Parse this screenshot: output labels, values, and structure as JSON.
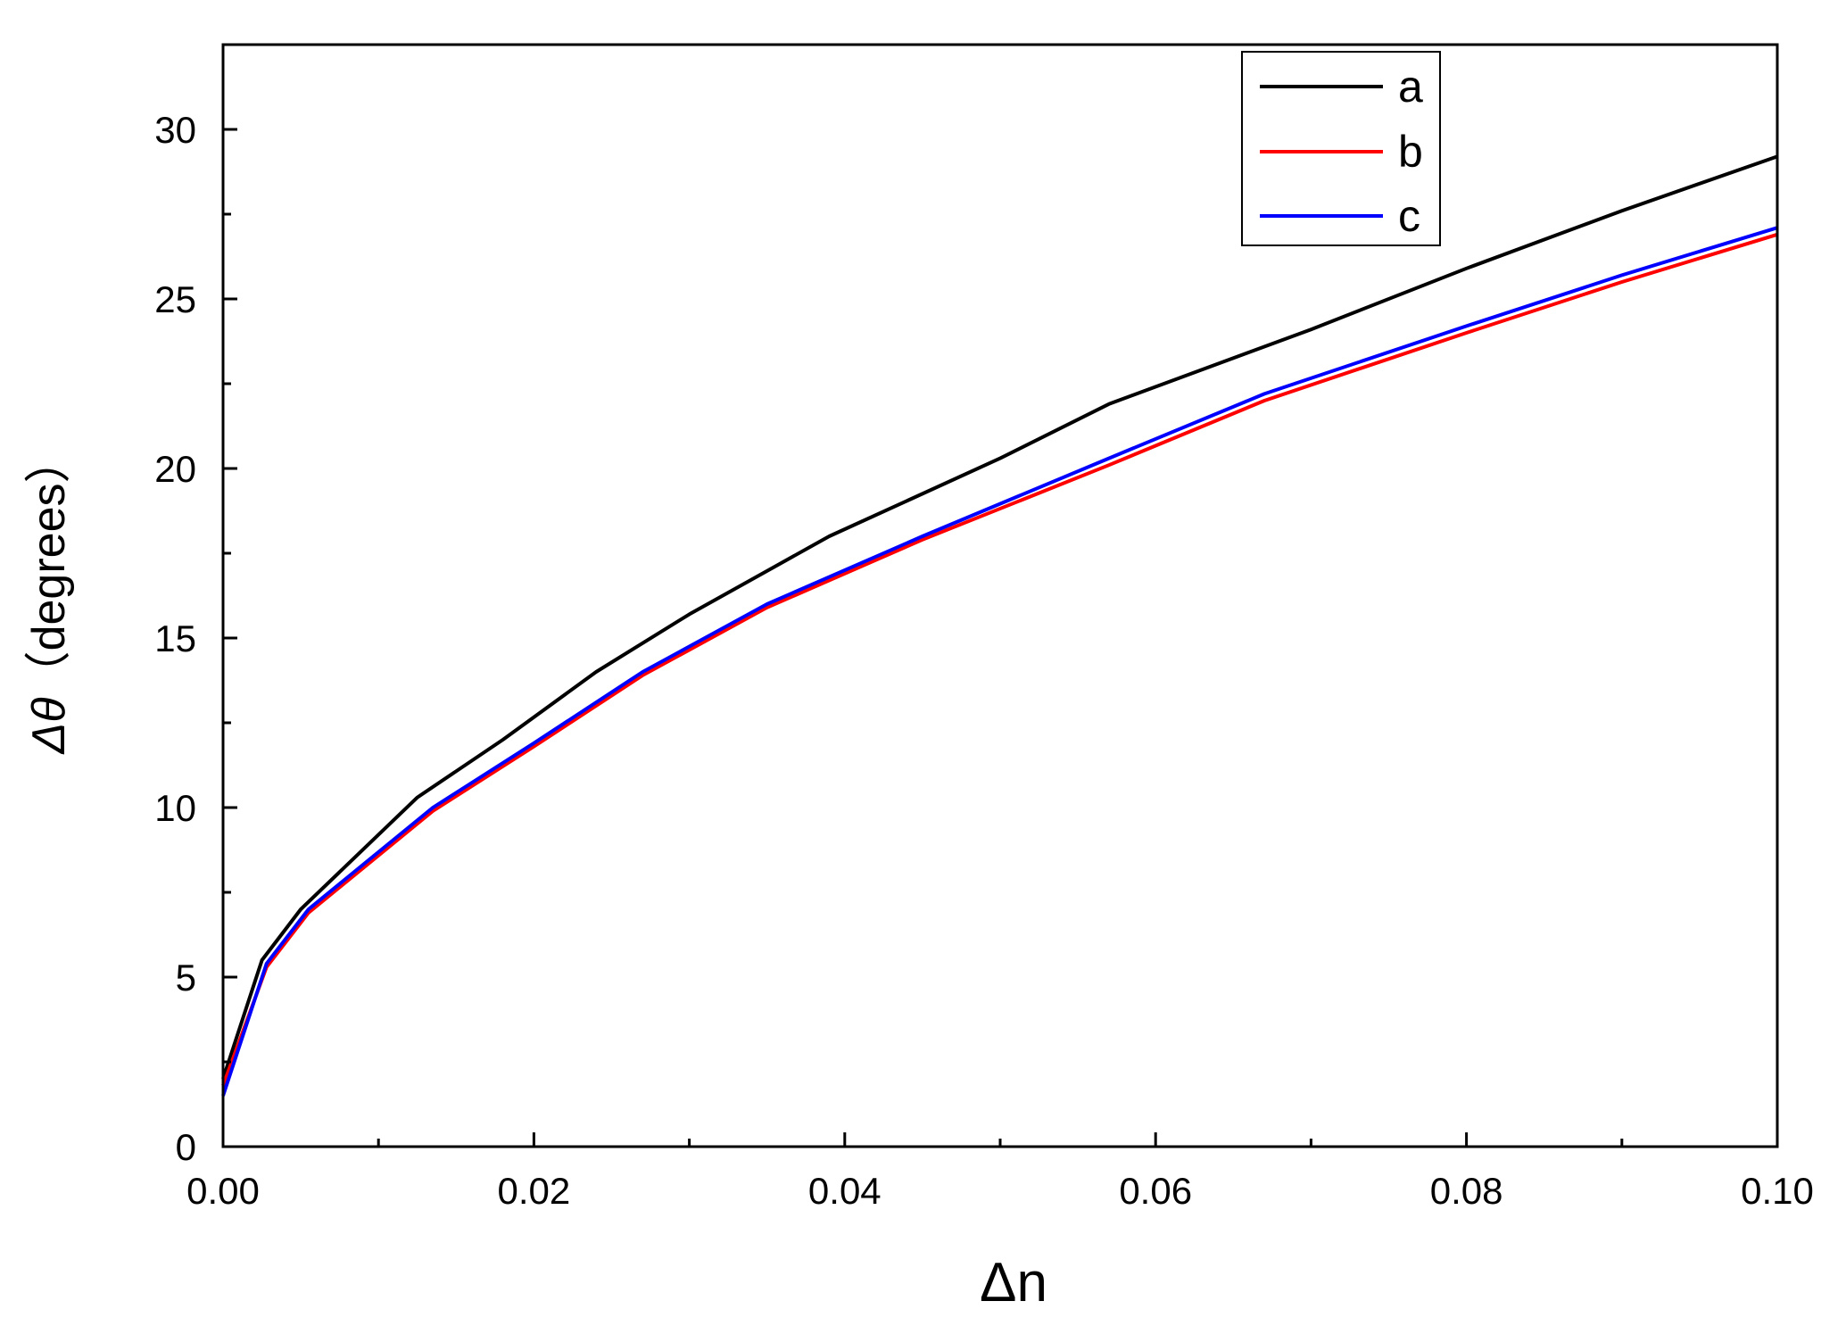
{
  "chart_data": {
    "type": "line",
    "xlabel": "Δn",
    "ylabel_symbol": "Δθ",
    "ylabel_unit": "（degrees）",
    "xlim": [
      0,
      0.1
    ],
    "ylim": [
      0,
      32.5
    ],
    "x_ticks": [
      0,
      0.02,
      0.04,
      0.06,
      0.08,
      0.1
    ],
    "x_tick_labels": [
      "0.00",
      "0.02",
      "0.04",
      "0.06",
      "0.08",
      "0.10"
    ],
    "y_ticks": [
      0,
      5,
      10,
      15,
      20,
      25,
      30
    ],
    "y_tick_labels": [
      "0",
      "5",
      "10",
      "15",
      "20",
      "25",
      "30"
    ],
    "grid": false,
    "legend_position": "top-right",
    "series": [
      {
        "name": "a",
        "color": "#000000",
        "points": [
          [
            0,
            2.0
          ],
          [
            0.0025,
            5.5
          ],
          [
            0.005,
            7.0
          ],
          [
            0.0125,
            10.3
          ],
          [
            0.018,
            12.0
          ],
          [
            0.024,
            14.0
          ],
          [
            0.03,
            15.7
          ],
          [
            0.039,
            18.0
          ],
          [
            0.05,
            20.3
          ],
          [
            0.057,
            21.9
          ],
          [
            0.07,
            24.1
          ],
          [
            0.08,
            25.9
          ],
          [
            0.09,
            27.6
          ],
          [
            0.1,
            29.2
          ]
        ]
      },
      {
        "name": "b",
        "color": "#ff0000",
        "points": [
          [
            0,
            1.8
          ],
          [
            0.0028,
            5.3
          ],
          [
            0.0055,
            6.9
          ],
          [
            0.0135,
            9.9
          ],
          [
            0.02,
            11.8
          ],
          [
            0.027,
            13.9
          ],
          [
            0.035,
            15.9
          ],
          [
            0.045,
            17.9
          ],
          [
            0.057,
            20.1
          ],
          [
            0.067,
            22.0
          ],
          [
            0.08,
            24.0
          ],
          [
            0.09,
            25.5
          ],
          [
            0.1,
            26.9
          ]
        ]
      },
      {
        "name": "c",
        "color": "#0000ff",
        "points": [
          [
            0,
            1.5
          ],
          [
            0.0028,
            5.4
          ],
          [
            0.0055,
            7.0
          ],
          [
            0.0135,
            10.0
          ],
          [
            0.02,
            11.9
          ],
          [
            0.027,
            14.0
          ],
          [
            0.035,
            16.0
          ],
          [
            0.045,
            18.0
          ],
          [
            0.057,
            20.3
          ],
          [
            0.067,
            22.2
          ],
          [
            0.08,
            24.2
          ],
          [
            0.09,
            25.7
          ],
          [
            0.1,
            27.1
          ]
        ]
      }
    ]
  }
}
